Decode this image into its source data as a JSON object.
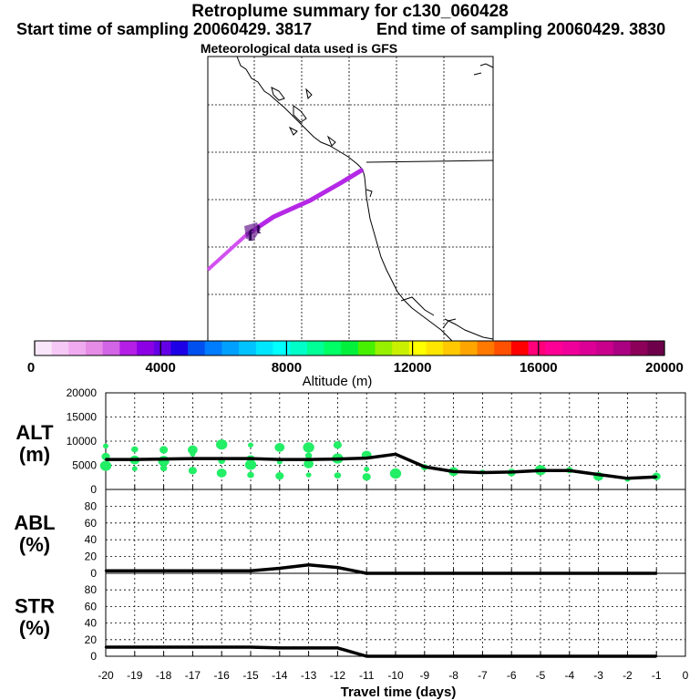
{
  "header": {
    "title": "Retroplume summary for c130_060428",
    "start_time": "Start time of sampling 20060429.  3817",
    "end_time": "End time of sampling 20060429.  3830",
    "met_data": "Meteorological data used is GFS"
  },
  "colorbar": {
    "label": "Altitude (m)",
    "tick_labels": [
      "0",
      "4000",
      "8000",
      "12000",
      "16000",
      "20000"
    ],
    "min": 0,
    "max": 20000,
    "colors": [
      "#fae6fa",
      "#f5c8f5",
      "#f0aaf0",
      "#e68ce6",
      "#d264e6",
      "#b41ee6",
      "#8c00e6",
      "#6400e6",
      "#1e00e6",
      "#0050f0",
      "#007cff",
      "#00a0ff",
      "#00c3ff",
      "#00e6ff",
      "#00ffff",
      "#00ffc8",
      "#00ff96",
      "#00ff64",
      "#00f03c",
      "#46f000",
      "#96f000",
      "#c8f000",
      "#ffff00",
      "#ffe600",
      "#ffc800",
      "#ffa500",
      "#ff7800",
      "#ff5000",
      "#ff0000",
      "#ff007a",
      "#ff0096",
      "#f0009b",
      "#dc0096",
      "#c8008c",
      "#aa0082",
      "#8c005a",
      "#6e004b"
    ]
  },
  "map": {
    "plume_color": "#b428e6",
    "plume_tail_color": "#d250f0"
  },
  "chart_data": [
    {
      "type": "line",
      "name": "ALT",
      "ylabel_line1": "ALT",
      "ylabel_line2": "(m)",
      "ylim": [
        0,
        20000
      ],
      "ytick_labels": [
        "0",
        "5000",
        "10000",
        "15000",
        "20000"
      ],
      "x": [
        -20,
        -19,
        -18,
        -17,
        -16,
        -15,
        -14,
        -13,
        -12,
        -11,
        -10,
        -9,
        -8,
        -7,
        -6,
        -5,
        -4,
        -3,
        -2,
        -1
      ],
      "series": [
        {
          "name": "mean altitude",
          "color": "#000000",
          "values": [
            6200,
            6200,
            6300,
            6400,
            6400,
            6400,
            6200,
            6200,
            6300,
            6500,
            7300,
            4700,
            3700,
            3500,
            3600,
            3900,
            3900,
            3100,
            2300,
            2600
          ]
        }
      ],
      "scatter": {
        "color": "#22ee66",
        "points": [
          {
            "x": -20,
            "y": 9000
          },
          {
            "x": -20,
            "y": 6800
          },
          {
            "x": -20,
            "y": 4900
          },
          {
            "x": -19,
            "y": 8300
          },
          {
            "x": -19,
            "y": 6100
          },
          {
            "x": -19,
            "y": 4300
          },
          {
            "x": -18,
            "y": 8200
          },
          {
            "x": -18,
            "y": 5900
          },
          {
            "x": -18,
            "y": 4400
          },
          {
            "x": -17,
            "y": 8200
          },
          {
            "x": -17,
            "y": 7300
          },
          {
            "x": -17,
            "y": 3900
          },
          {
            "x": -16,
            "y": 9300
          },
          {
            "x": -16,
            "y": 5900
          },
          {
            "x": -16,
            "y": 3400
          },
          {
            "x": -15,
            "y": 9200
          },
          {
            "x": -15,
            "y": 6300
          },
          {
            "x": -15,
            "y": 5100
          },
          {
            "x": -15,
            "y": 3000
          },
          {
            "x": -14,
            "y": 8700
          },
          {
            "x": -14,
            "y": 5700
          },
          {
            "x": -14,
            "y": 2800
          },
          {
            "x": -13,
            "y": 8700
          },
          {
            "x": -13,
            "y": 7000
          },
          {
            "x": -13,
            "y": 5300
          },
          {
            "x": -13,
            "y": 3000
          },
          {
            "x": -12,
            "y": 9200
          },
          {
            "x": -12,
            "y": 6400
          },
          {
            "x": -12,
            "y": 2900
          },
          {
            "x": -11,
            "y": 7100
          },
          {
            "x": -11,
            "y": 4200
          },
          {
            "x": -11,
            "y": 2600
          },
          {
            "x": -10,
            "y": 3300
          },
          {
            "x": -9,
            "y": 4600
          },
          {
            "x": -8,
            "y": 3700
          },
          {
            "x": -7,
            "y": 3600
          },
          {
            "x": -6,
            "y": 3500
          },
          {
            "x": -5,
            "y": 4000
          },
          {
            "x": -4,
            "y": 4000
          },
          {
            "x": -3,
            "y": 2700
          },
          {
            "x": -2,
            "y": 2100
          },
          {
            "x": -1,
            "y": 2700
          }
        ]
      }
    },
    {
      "type": "line",
      "name": "ABL",
      "ylabel_line1": "ABL",
      "ylabel_line2": "(%)",
      "ylim": [
        0,
        100
      ],
      "ytick_labels": [
        "0",
        "20",
        "40",
        "60",
        "80"
      ],
      "x": [
        -20,
        -19,
        -18,
        -17,
        -16,
        -15,
        -14,
        -13,
        -12,
        -11,
        -10,
        -9,
        -8,
        -7,
        -6,
        -5,
        -4,
        -3,
        -2,
        -1
      ],
      "series": [
        {
          "name": "ABL fraction",
          "color": "#000000",
          "values": [
            3,
            3,
            3,
            3,
            3,
            3,
            6,
            10,
            7,
            0,
            0,
            0,
            0,
            0,
            0,
            0,
            0,
            0,
            0,
            0
          ]
        }
      ]
    },
    {
      "type": "line",
      "name": "STR",
      "ylabel_line1": "STR",
      "ylabel_line2": "(%)",
      "ylim": [
        0,
        100
      ],
      "ytick_labels": [
        "0",
        "20",
        "40",
        "60",
        "80"
      ],
      "x": [
        -20,
        -19,
        -18,
        -17,
        -16,
        -15,
        -14,
        -13,
        -12,
        -11,
        -10,
        -9,
        -8,
        -7,
        -6,
        -5,
        -4,
        -3,
        -2,
        -1
      ],
      "series": [
        {
          "name": "STR fraction",
          "color": "#000000",
          "values": [
            11,
            11,
            11,
            11,
            11,
            11,
            10,
            10,
            10,
            0,
            0,
            0,
            0,
            0,
            0,
            0,
            0,
            0,
            0,
            0
          ]
        }
      ]
    }
  ],
  "xaxis": {
    "label": "Travel time (days)",
    "min": -20,
    "max": 0,
    "tick_labels": [
      "-20",
      "-19",
      "-18",
      "-17",
      "-16",
      "-15",
      "-14",
      "-13",
      "-12",
      "-11",
      "-10",
      "-9",
      "-8",
      "-7",
      "-6",
      "-5",
      "-4",
      "-3",
      "-2",
      "-1",
      "0"
    ]
  }
}
